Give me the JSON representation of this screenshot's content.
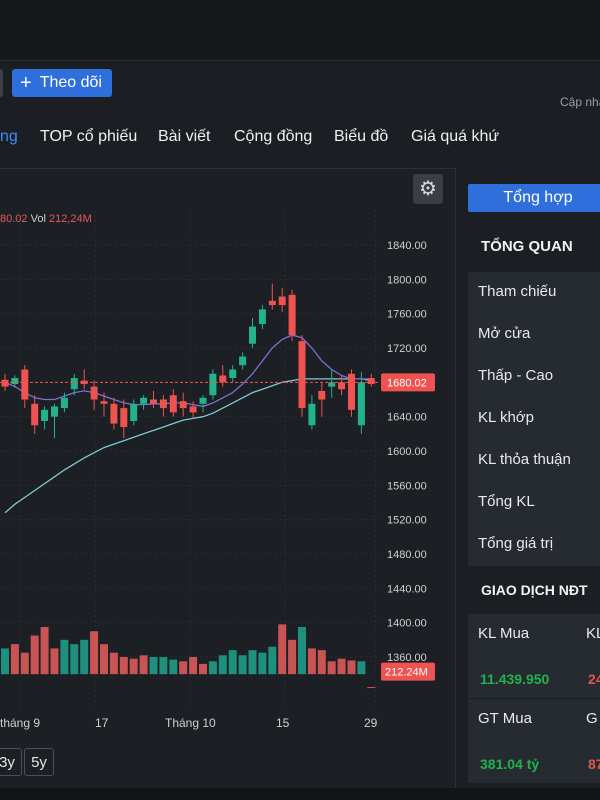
{
  "header": {
    "follow_button": {
      "icon": "plus-icon",
      "label": "Theo dõi"
    },
    "updated_label": "Cập nhật"
  },
  "nav": {
    "items": [
      {
        "label": "ng",
        "active": true
      },
      {
        "label": "TOP cổ phiếu"
      },
      {
        "label": "Bài viết"
      },
      {
        "label": "Cộng đồng"
      },
      {
        "label": "Biểu đồ"
      },
      {
        "label": "Giá quá khứ"
      }
    ]
  },
  "chart_panel": {
    "settings_icon": "gear-icon",
    "legend": {
      "close_fragment": "80.02",
      "vol_label": "Vol",
      "vol_value": "212,24M"
    },
    "current_price_tag": "1680.02",
    "volume_tag": "212.24M",
    "range_buttons": [
      "3y",
      "5y"
    ]
  },
  "chart_data": {
    "type": "candlestick",
    "y_ticks": [
      "1840.00",
      "1800.00",
      "1760.00",
      "1720.00",
      "1680.00",
      "1640.00",
      "1600.00",
      "1560.00",
      "1520.00",
      "1480.00",
      "1440.00",
      "1400.00",
      "1360.00"
    ],
    "ylim": [
      1340,
      1860
    ],
    "x_ticks": [
      "tháng 9",
      "17",
      "Tháng 10",
      "15",
      "29"
    ],
    "current_price": 1680.02,
    "candles": [
      {
        "o": 1683,
        "h": 1690,
        "l": 1670,
        "c": 1675
      },
      {
        "o": 1678,
        "h": 1688,
        "l": 1674,
        "c": 1685
      },
      {
        "o": 1695,
        "h": 1700,
        "l": 1650,
        "c": 1660
      },
      {
        "o": 1655,
        "h": 1665,
        "l": 1620,
        "c": 1630
      },
      {
        "o": 1635,
        "h": 1652,
        "l": 1625,
        "c": 1648
      },
      {
        "o": 1640,
        "h": 1655,
        "l": 1615,
        "c": 1652
      },
      {
        "o": 1650,
        "h": 1668,
        "l": 1645,
        "c": 1662
      },
      {
        "o": 1672,
        "h": 1690,
        "l": 1665,
        "c": 1685
      },
      {
        "o": 1682,
        "h": 1695,
        "l": 1672,
        "c": 1678
      },
      {
        "o": 1675,
        "h": 1682,
        "l": 1648,
        "c": 1660
      },
      {
        "o": 1658,
        "h": 1668,
        "l": 1640,
        "c": 1655
      },
      {
        "o": 1655,
        "h": 1662,
        "l": 1625,
        "c": 1632
      },
      {
        "o": 1650,
        "h": 1660,
        "l": 1615,
        "c": 1628
      },
      {
        "o": 1635,
        "h": 1660,
        "l": 1630,
        "c": 1655
      },
      {
        "o": 1655,
        "h": 1665,
        "l": 1648,
        "c": 1662
      },
      {
        "o": 1660,
        "h": 1670,
        "l": 1650,
        "c": 1655
      },
      {
        "o": 1660,
        "h": 1665,
        "l": 1640,
        "c": 1650
      },
      {
        "o": 1665,
        "h": 1672,
        "l": 1640,
        "c": 1645
      },
      {
        "o": 1658,
        "h": 1668,
        "l": 1640,
        "c": 1650
      },
      {
        "o": 1652,
        "h": 1658,
        "l": 1638,
        "c": 1645
      },
      {
        "o": 1655,
        "h": 1665,
        "l": 1645,
        "c": 1662
      },
      {
        "o": 1665,
        "h": 1695,
        "l": 1660,
        "c": 1690
      },
      {
        "o": 1688,
        "h": 1700,
        "l": 1675,
        "c": 1680
      },
      {
        "o": 1685,
        "h": 1700,
        "l": 1680,
        "c": 1695
      },
      {
        "o": 1700,
        "h": 1715,
        "l": 1695,
        "c": 1710
      },
      {
        "o": 1725,
        "h": 1755,
        "l": 1720,
        "c": 1745
      },
      {
        "o": 1748,
        "h": 1770,
        "l": 1742,
        "c": 1765
      },
      {
        "o": 1775,
        "h": 1795,
        "l": 1765,
        "c": 1770
      },
      {
        "o": 1780,
        "h": 1790,
        "l": 1762,
        "c": 1770
      },
      {
        "o": 1782,
        "h": 1788,
        "l": 1728,
        "c": 1735
      },
      {
        "o": 1728,
        "h": 1735,
        "l": 1640,
        "c": 1650
      },
      {
        "o": 1630,
        "h": 1665,
        "l": 1625,
        "c": 1655
      },
      {
        "o": 1670,
        "h": 1680,
        "l": 1640,
        "c": 1660
      },
      {
        "o": 1675,
        "h": 1695,
        "l": 1662,
        "c": 1680
      },
      {
        "o": 1680,
        "h": 1688,
        "l": 1665,
        "c": 1672
      },
      {
        "o": 1690,
        "h": 1695,
        "l": 1640,
        "c": 1648
      },
      {
        "o": 1630,
        "h": 1692,
        "l": 1620,
        "c": 1680
      },
      {
        "o": 1685,
        "h": 1690,
        "l": 1675,
        "c": 1678
      }
    ],
    "ma_short": [
      1680,
      1675,
      1668,
      1662,
      1660,
      1660,
      1664,
      1668,
      1670,
      1668,
      1664,
      1660,
      1656,
      1654,
      1654,
      1655,
      1655,
      1656,
      1656,
      1654,
      1652,
      1656,
      1662,
      1668,
      1678,
      1690,
      1705,
      1720,
      1730,
      1735,
      1732,
      1720,
      1705,
      1695,
      1688,
      1684,
      1684,
      1684
    ],
    "ma_long": [
      1528,
      1538,
      1546,
      1554,
      1562,
      1570,
      1578,
      1585,
      1592,
      1598,
      1604,
      1608,
      1612,
      1616,
      1620,
      1624,
      1628,
      1632,
      1636,
      1638,
      1640,
      1644,
      1650,
      1656,
      1662,
      1668,
      1672,
      1676,
      1680,
      1682,
      1684,
      1684,
      1684,
      1684,
      1684,
      1684,
      1684,
      1682
    ],
    "volume": [
      {
        "v": 1370,
        "up": true
      },
      {
        "v": 1375,
        "up": false
      },
      {
        "v": 1365,
        "up": false
      },
      {
        "v": 1385,
        "up": false
      },
      {
        "v": 1395,
        "up": false
      },
      {
        "v": 1370,
        "up": false
      },
      {
        "v": 1380,
        "up": true
      },
      {
        "v": 1375,
        "up": true
      },
      {
        "v": 1380,
        "up": true
      },
      {
        "v": 1390,
        "up": false
      },
      {
        "v": 1375,
        "up": false
      },
      {
        "v": 1365,
        "up": false
      },
      {
        "v": 1360,
        "up": false
      },
      {
        "v": 1358,
        "up": false
      },
      {
        "v": 1362,
        "up": false
      },
      {
        "v": 1360,
        "up": true
      },
      {
        "v": 1360,
        "up": true
      },
      {
        "v": 1357,
        "up": true
      },
      {
        "v": 1355,
        "up": false
      },
      {
        "v": 1360,
        "up": false
      },
      {
        "v": 1352,
        "up": false
      },
      {
        "v": 1355,
        "up": true
      },
      {
        "v": 1362,
        "up": true
      },
      {
        "v": 1368,
        "up": true
      },
      {
        "v": 1362,
        "up": true
      },
      {
        "v": 1368,
        "up": true
      },
      {
        "v": 1365,
        "up": true
      },
      {
        "v": 1372,
        "up": true
      },
      {
        "v": 1398,
        "up": false
      },
      {
        "v": 1380,
        "up": false
      },
      {
        "v": 1395,
        "up": true
      },
      {
        "v": 1370,
        "up": false
      },
      {
        "v": 1368,
        "up": false
      },
      {
        "v": 1355,
        "up": false
      },
      {
        "v": 1358,
        "up": false
      },
      {
        "v": 1356,
        "up": false
      },
      {
        "v": 1355,
        "up": true
      },
      {
        "v": 1325,
        "up": false
      }
    ]
  },
  "side": {
    "tab_label": "Tổng hợp",
    "overview_title": "TỔNG QUAN",
    "overview_rows": [
      "Tham chiếu",
      "Mở cửa",
      "Thấp - Cao",
      "KL khớp",
      "KL thỏa thuận",
      "Tổng KL",
      "Tổng giá trị"
    ],
    "foreign_title": "GIAO DỊCH NĐT",
    "foreign_rows": [
      {
        "label": "KL Mua",
        "value": "11.439.950",
        "label2": "KL",
        "value2": "24"
      },
      {
        "label": "GT Mua",
        "value": "381.04 tỷ",
        "label2": "G",
        "value2": "87"
      }
    ],
    "colors": {
      "up": "#22b14c",
      "down": "#e0574f",
      "accent": "#2f6fdc"
    }
  }
}
